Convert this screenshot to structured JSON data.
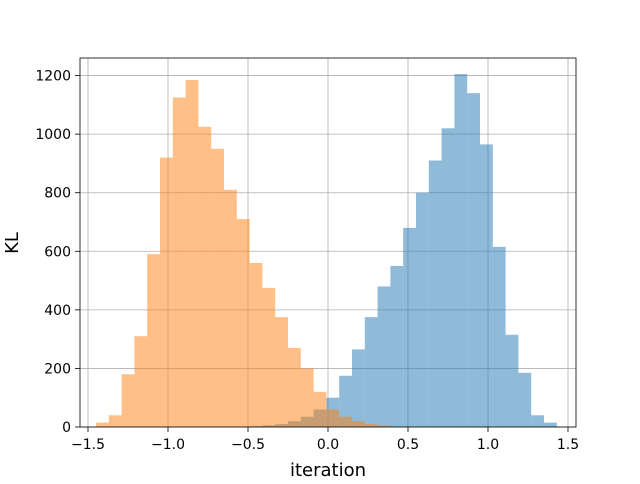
{
  "chart_data": {
    "type": "bar",
    "title": "",
    "xlabel": "iteration",
    "ylabel": "KL",
    "xlim": [
      -1.55,
      1.55
    ],
    "ylim": [
      0,
      1260
    ],
    "grid": true,
    "x_ticks": [
      -1.5,
      -1.0,
      -0.5,
      0.0,
      0.5,
      1.0,
      1.5
    ],
    "x_tick_labels": [
      "−1.5",
      "−1.0",
      "−0.5",
      "0.0",
      "0.5",
      "1.0",
      "1.5"
    ],
    "y_ticks": [
      0,
      200,
      400,
      600,
      800,
      1000,
      1200
    ],
    "y_tick_labels": [
      "0",
      "200",
      "400",
      "600",
      "800",
      "1000",
      "1200"
    ],
    "bin_width": 0.08,
    "series": [
      {
        "color": "#1f77b4",
        "opacity": 0.5,
        "bin_starts": [
          -0.49,
          -0.41,
          -0.33,
          -0.25,
          -0.17,
          -0.09,
          -0.01,
          0.07,
          0.15,
          0.23,
          0.31,
          0.39,
          0.47,
          0.55,
          0.63,
          0.71,
          0.79,
          0.87,
          0.95,
          1.03,
          1.11,
          1.19,
          1.27,
          1.35
        ],
        "values": [
          3,
          6,
          10,
          20,
          35,
          60,
          100,
          175,
          265,
          375,
          480,
          550,
          680,
          800,
          910,
          1020,
          1205,
          1140,
          965,
          615,
          315,
          185,
          40,
          15
        ]
      },
      {
        "color": "#ff7f0e",
        "opacity": 0.5,
        "bin_starts": [
          -1.45,
          -1.37,
          -1.29,
          -1.21,
          -1.13,
          -1.05,
          -0.97,
          -0.89,
          -0.81,
          -0.73,
          -0.65,
          -0.57,
          -0.49,
          -0.41,
          -0.33,
          -0.25,
          -0.17,
          -0.09,
          -0.01,
          0.07,
          0.15,
          0.23,
          0.31
        ],
        "values": [
          15,
          40,
          180,
          310,
          590,
          920,
          1125,
          1185,
          1025,
          950,
          810,
          710,
          560,
          475,
          375,
          270,
          200,
          120,
          60,
          35,
          20,
          10,
          5
        ]
      }
    ]
  }
}
